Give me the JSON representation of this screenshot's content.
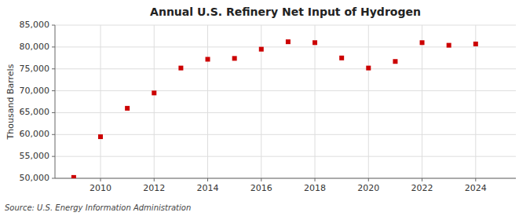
{
  "chart_data": {
    "type": "scatter",
    "title": "Annual U.S. Refinery Net Input of Hydrogen",
    "y_label": "Thousand Barrels",
    "annotation": "Source: U.S. Energy Information Administration",
    "x": [
      2009,
      2010,
      2011,
      2012,
      2013,
      2014,
      2015,
      2016,
      2017,
      2018,
      2019,
      2020,
      2021,
      2022,
      2023,
      2024
    ],
    "values": [
      50200,
      59500,
      66000,
      69500,
      75200,
      77200,
      77400,
      79500,
      81200,
      81000,
      77500,
      75200,
      76700,
      81000,
      80400,
      80700
    ],
    "color": "#cc0000",
    "marker": "square",
    "xlim": [
      2008.3,
      2025.5
    ],
    "xticks": [
      2010,
      2012,
      2014,
      2016,
      2018,
      2020,
      2022,
      2024
    ],
    "ylim": [
      50000,
      85000
    ],
    "yticks": [
      {
        "value": 50000,
        "label": "50,000"
      },
      {
        "value": 55000,
        "label": "55,000"
      },
      {
        "value": 60000,
        "label": "60,000"
      },
      {
        "value": 65000,
        "label": "65,000"
      },
      {
        "value": 70000,
        "label": "70,000"
      },
      {
        "value": 75000,
        "label": "75,000"
      },
      {
        "value": 80000,
        "label": "80,000"
      },
      {
        "value": 85000,
        "label": "85,000"
      }
    ],
    "grid": true
  }
}
